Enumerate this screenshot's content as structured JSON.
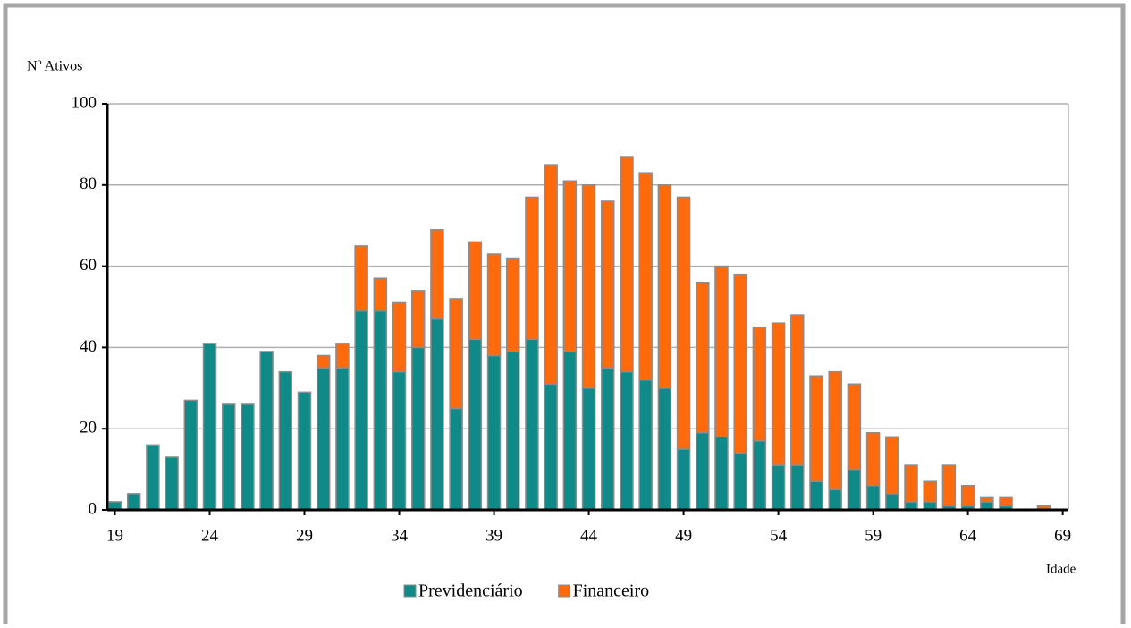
{
  "chart_data": {
    "type": "stacked-bar",
    "y_label": "Nº Ativos",
    "x_label": "Idade",
    "x": [
      19,
      20,
      21,
      22,
      23,
      24,
      25,
      26,
      27,
      28,
      29,
      30,
      31,
      32,
      33,
      34,
      35,
      36,
      37,
      38,
      39,
      40,
      41,
      42,
      43,
      44,
      45,
      46,
      47,
      48,
      49,
      50,
      51,
      52,
      53,
      54,
      55,
      56,
      57,
      58,
      59,
      60,
      61,
      62,
      63,
      64,
      65,
      66,
      67,
      68
    ],
    "series": [
      {
        "name": "Previdenciário",
        "color": "#0f8a88",
        "values": [
          2,
          4,
          16,
          13,
          27,
          41,
          26,
          26,
          39,
          34,
          29,
          35,
          35,
          49,
          49,
          34,
          40,
          47,
          25,
          42,
          38,
          39,
          42,
          31,
          39,
          30,
          35,
          34,
          32,
          30,
          15,
          19,
          18,
          14,
          17,
          11,
          11,
          7,
          5,
          10,
          6,
          4,
          2,
          2,
          1,
          1,
          2,
          1,
          0,
          0
        ]
      },
      {
        "name": "Financeiro",
        "color": "#ff6a0d",
        "values": [
          0,
          0,
          0,
          0,
          0,
          0,
          0,
          0,
          0,
          0,
          0,
          3,
          6,
          16,
          8,
          17,
          14,
          22,
          27,
          24,
          25,
          23,
          35,
          54,
          42,
          50,
          41,
          53,
          51,
          50,
          62,
          37,
          42,
          44,
          28,
          35,
          37,
          26,
          29,
          21,
          13,
          14,
          9,
          5,
          10,
          5,
          1,
          2,
          0,
          1
        ]
      }
    ],
    "xlim": [
      18.6,
      69.3
    ],
    "xticks": [
      19,
      24,
      29,
      34,
      39,
      44,
      49,
      54,
      59,
      64,
      69
    ],
    "ylim": [
      0,
      100
    ],
    "yticks": [
      0,
      20,
      40,
      60,
      80,
      100
    ],
    "grid": true
  }
}
